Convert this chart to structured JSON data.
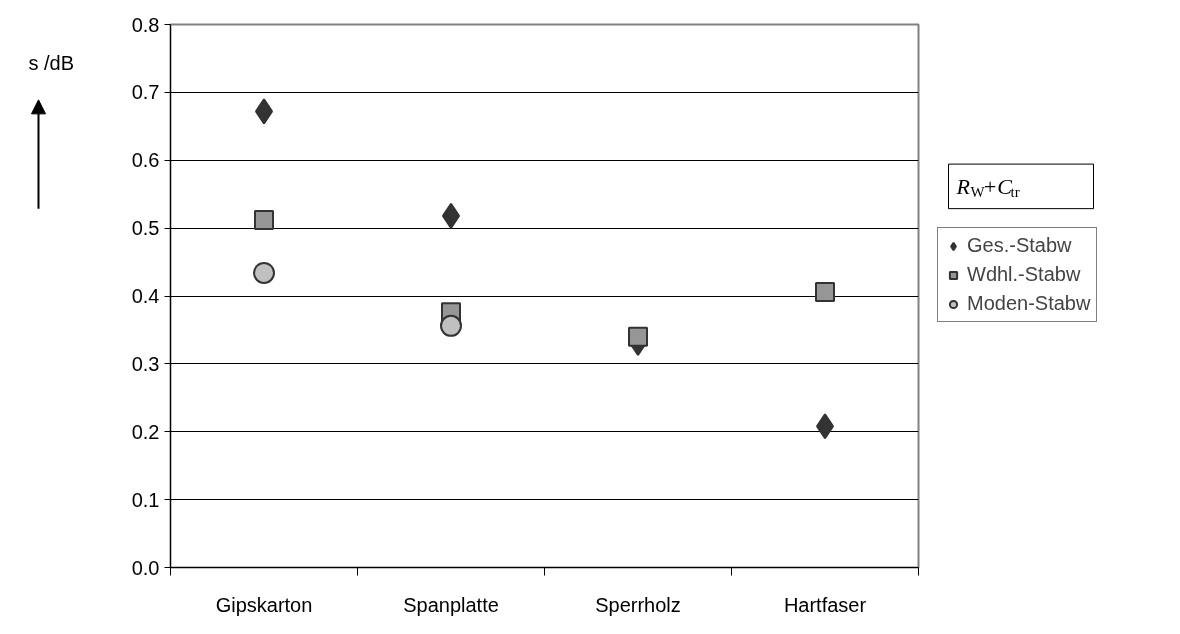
{
  "chart_data": {
    "type": "scatter",
    "ylabel": "s /dB",
    "categories": [
      "Gipskarton",
      "Spanplatte",
      "Sperrholz",
      "Hartfaser"
    ],
    "series": [
      {
        "name": "Ges.-Stabw",
        "color": "#333333",
        "marker": "diamond",
        "values": [
          0.672,
          0.518,
          0.331,
          0.208
        ]
      },
      {
        "name": "Wdhl.-Stabw",
        "color": "#969696",
        "marker": "square",
        "values": [
          0.512,
          0.376,
          0.34,
          0.406
        ]
      },
      {
        "name": "Moden-Stabw",
        "color": "#c0c0c0",
        "marker": "circle",
        "values": [
          0.434,
          0.356,
          null,
          null
        ]
      }
    ],
    "ylim": [
      0,
      0.8
    ],
    "yticks": [
      {
        "value": 0,
        "label": "0.0"
      },
      0.1,
      0.2,
      0.3,
      0.4,
      0.5,
      0.6,
      0.7,
      0.8
    ],
    "grid": "y",
    "legend": "right",
    "annotations": [
      "R$_{W}$+C$_{tr}$"
    ]
  }
}
